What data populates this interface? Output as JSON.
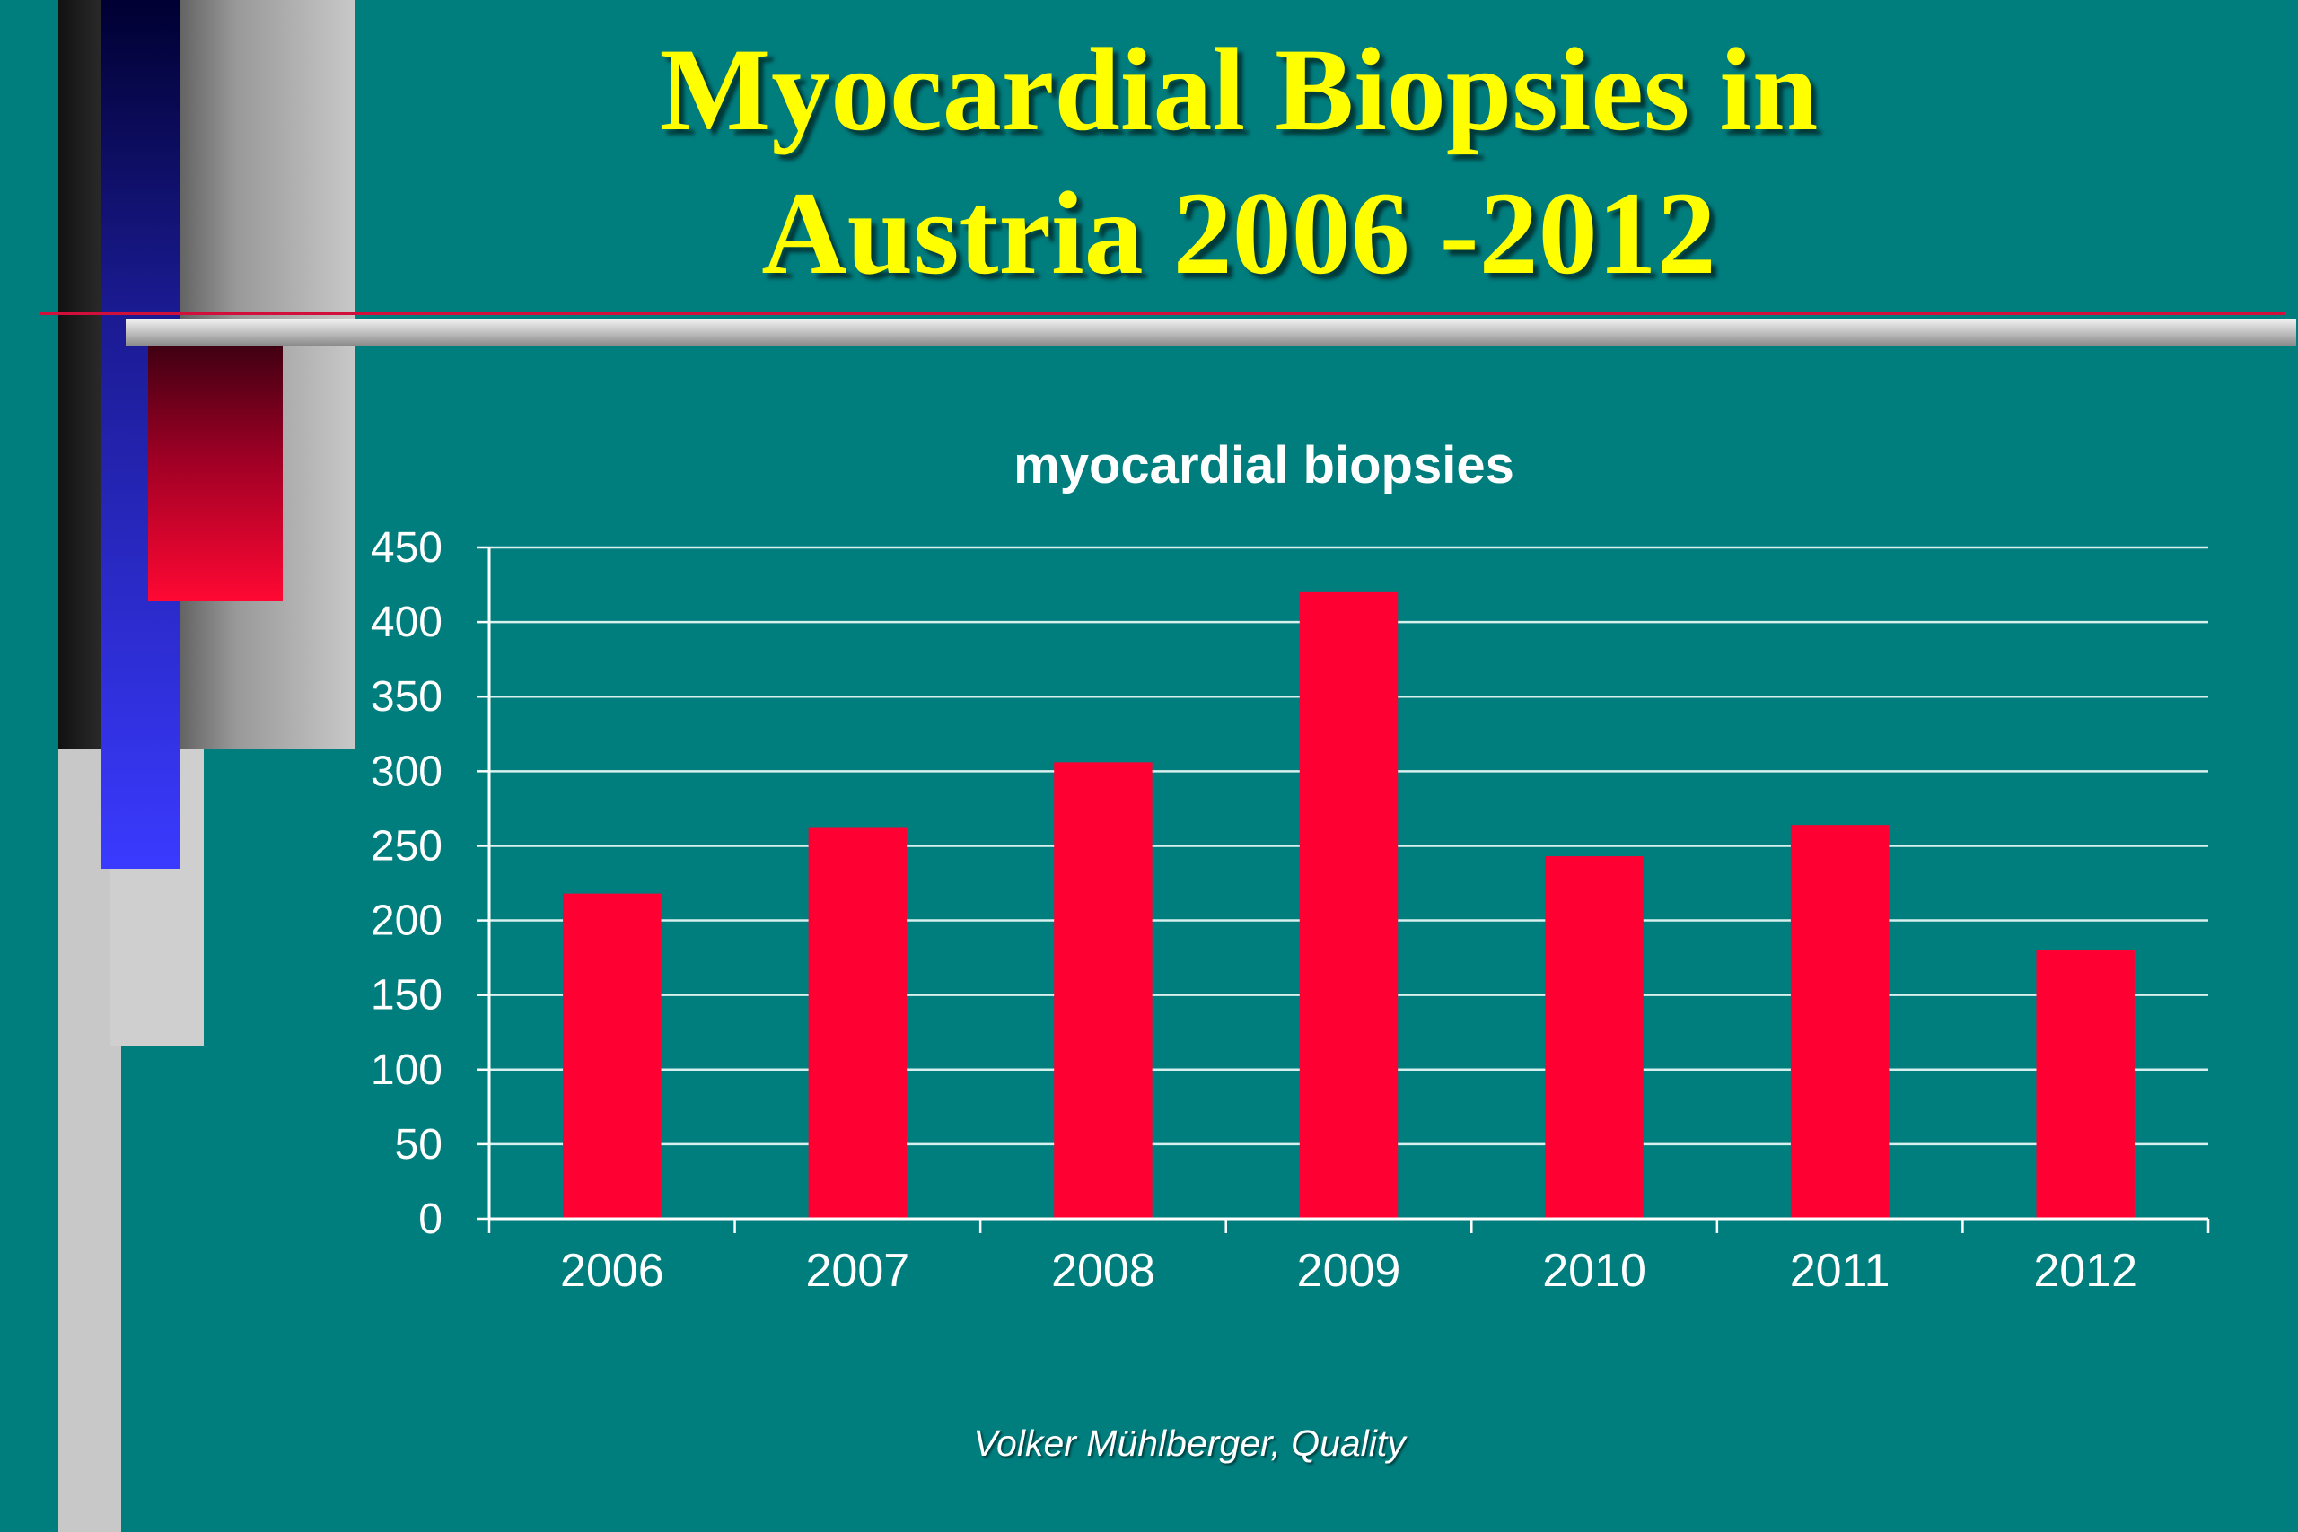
{
  "slide": {
    "title_line1": "Myocardial Biopsies in",
    "title_line2": "Austria 2006 -2012",
    "credit": "Volker Mühlberger, Quality"
  },
  "colors": {
    "background": "#007d7d",
    "title": "#ffff00",
    "bar": "#ff0033",
    "gridline": "#d8f0ee",
    "text": "#ffffff"
  },
  "chart_data": {
    "type": "bar",
    "title": "myocardial biopsies",
    "xlabel": "",
    "ylabel": "",
    "categories": [
      "2006",
      "2007",
      "2008",
      "2009",
      "2010",
      "2011",
      "2012"
    ],
    "values": [
      218,
      262,
      306,
      420,
      243,
      264,
      180
    ],
    "ylim": [
      0,
      450
    ],
    "yticks": [
      0,
      50,
      100,
      150,
      200,
      250,
      300,
      350,
      400,
      450
    ],
    "grid": true,
    "legend": "none"
  }
}
